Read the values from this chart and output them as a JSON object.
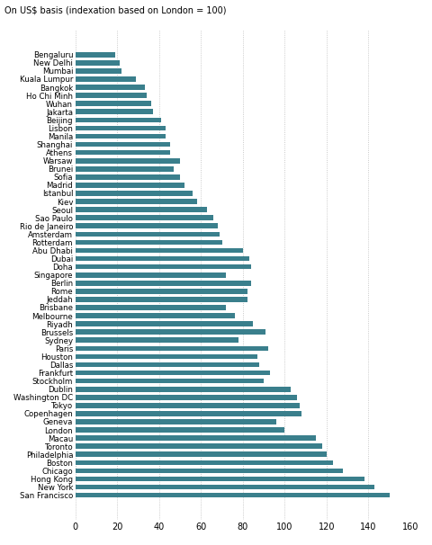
{
  "title": "On US$ basis (indexation based on London = 100)",
  "bar_color": "#3a7f8c",
  "xlim": [
    0,
    160
  ],
  "xticks": [
    0,
    20,
    40,
    60,
    80,
    100,
    120,
    140,
    160
  ],
  "categories": [
    "Bengaluru",
    "New Delhi",
    "Mumbai",
    "Kuala Lumpur",
    "Bangkok",
    "Ho Chi Minh",
    "Wuhan",
    "Jakarta",
    "Beijing",
    "Lisbon",
    "Manila",
    "Shanghai",
    "Athens",
    "Warsaw",
    "Brunei",
    "Sofia",
    "Madrid",
    "Istanbul",
    "Kiev",
    "Seoul",
    "Sao Paulo",
    "Rio de Janeiro",
    "Amsterdam",
    "Rotterdam",
    "Abu Dhabi",
    "Dubai",
    "Doha",
    "Singapore",
    "Berlin",
    "Rome",
    "Jeddah",
    "Brisbane",
    "Melbourne",
    "Riyadh",
    "Brussels",
    "Sydney",
    "Paris",
    "Houston",
    "Dallas",
    "Frankfurt",
    "Stockholm",
    "Dublin",
    "Washington DC",
    "Tokyo",
    "Copenhagen",
    "Geneva",
    "London",
    "Macau",
    "Toronto",
    "Philadelphia",
    "Boston",
    "Chicago",
    "Hong Kong",
    "New York",
    "San Francisco"
  ],
  "values": [
    19,
    21,
    22,
    29,
    33,
    34,
    36,
    37,
    41,
    43,
    43,
    45,
    45,
    50,
    47,
    50,
    52,
    56,
    58,
    63,
    66,
    68,
    69,
    70,
    80,
    83,
    84,
    72,
    84,
    82,
    82,
    72,
    76,
    85,
    91,
    78,
    92,
    87,
    88,
    93,
    90,
    103,
    106,
    107,
    108,
    96,
    100,
    115,
    118,
    120,
    123,
    128,
    138,
    143,
    150
  ]
}
